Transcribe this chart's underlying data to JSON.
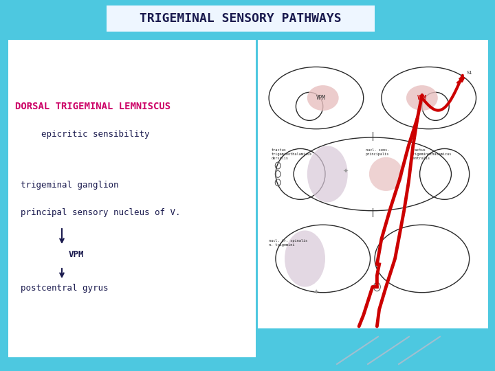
{
  "bg_color": "#4dc8e0",
  "title_text": "TRIGEMINAL SENSORY PATHWAYS",
  "title_bg": "#f0f8ff",
  "title_color": "#1a1a4e",
  "heading_text": "DORSAL TRIGEMINAL LEMNISCUS",
  "heading_color": "#cc0066",
  "line1_text": "epicritic sensibility",
  "line1_color": "#1a1a4e",
  "line2_text": "trigeminal ganglion",
  "line2_color": "#1a1a4e",
  "line3_text": "principal sensory nucleus of V.",
  "line3_color": "#1a1a4e",
  "vpm_text": "VPM",
  "vpm_color": "#1a1a4e",
  "postcentral_text": "postcentral gyrus",
  "postcentral_color": "#1a1a4e",
  "arrow_color": "#1a1a4e",
  "diag_line_color": "#a0bfd0"
}
